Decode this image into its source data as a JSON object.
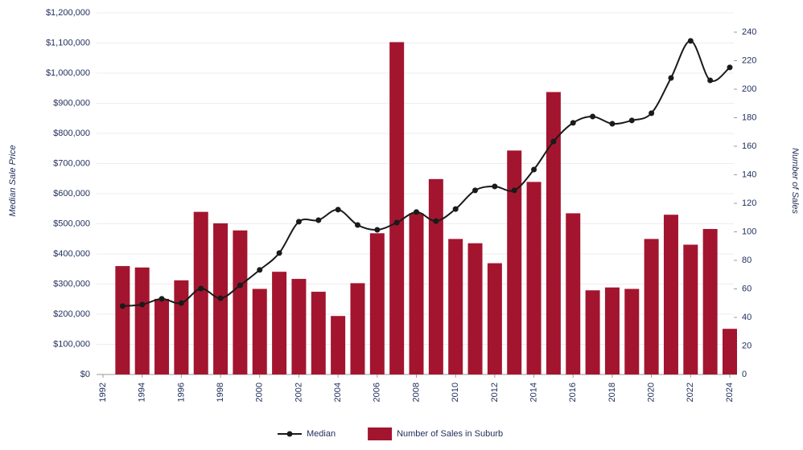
{
  "chart_data": {
    "type": "bar",
    "y_label": "Median Sale Price",
    "y2_label": "Number of Sales",
    "x": [
      1993,
      1994,
      1995,
      1996,
      1997,
      1998,
      1999,
      2000,
      2001,
      2002,
      2003,
      2004,
      2005,
      2006,
      2007,
      2008,
      2009,
      2010,
      2011,
      2012,
      2013,
      2014,
      2015,
      2016,
      2017,
      2018,
      2019,
      2020,
      2021,
      2022,
      2023,
      2024
    ],
    "xlim": [
      1992,
      2024
    ],
    "xticks": [
      1992,
      1994,
      1996,
      1998,
      2000,
      2002,
      2004,
      2006,
      2008,
      2010,
      2012,
      2014,
      2016,
      2018,
      2020,
      2022,
      2024
    ],
    "ylim": [
      0,
      1200000
    ],
    "yticks": [
      {
        "value": 0,
        "label": "$0"
      },
      {
        "value": 100000,
        "label": "$100,000"
      },
      {
        "value": 200000,
        "label": "$200,000"
      },
      {
        "value": 300000,
        "label": "$300,000"
      },
      {
        "value": 400000,
        "label": "$400,000"
      },
      {
        "value": 500000,
        "label": "$500,000"
      },
      {
        "value": 600000,
        "label": "$600,000"
      },
      {
        "value": 700000,
        "label": "$700,000"
      },
      {
        "value": 800000,
        "label": "$800,000"
      },
      {
        "value": 900000,
        "label": "$900,000"
      },
      {
        "value": 1000000,
        "label": "$1,000,000"
      },
      {
        "value": 1100000,
        "label": "$1,100,000"
      },
      {
        "value": 1200000,
        "label": "$1,200,000"
      }
    ],
    "y2lim": [
      0,
      240
    ],
    "y2ticks": [
      0,
      20,
      40,
      60,
      80,
      100,
      120,
      140,
      160,
      180,
      200,
      220,
      240
    ],
    "grid": true,
    "legend": "bottom",
    "series": [
      {
        "name": "Median",
        "type": "line",
        "color": "#1a1a1a",
        "values": [
          227000,
          232000,
          251000,
          237000,
          285000,
          253000,
          296000,
          347000,
          403000,
          507000,
          512000,
          547000,
          496000,
          480000,
          504000,
          539000,
          509000,
          549000,
          611000,
          624000,
          611000,
          680000,
          773000,
          835000,
          856000,
          832000,
          843000,
          867000,
          984000,
          1107000,
          976000,
          1019000
        ]
      },
      {
        "name": "Number of Sales in Suburb",
        "type": "bar",
        "axis": "y2",
        "color": "#a3152f",
        "values": [
          76,
          75,
          53,
          66,
          114,
          106,
          101,
          60,
          72,
          67,
          58,
          41,
          64,
          99,
          233,
          113,
          137,
          95,
          92,
          78,
          157,
          135,
          198,
          113,
          59,
          61,
          60,
          95,
          112,
          91,
          102,
          32
        ]
      }
    ]
  }
}
